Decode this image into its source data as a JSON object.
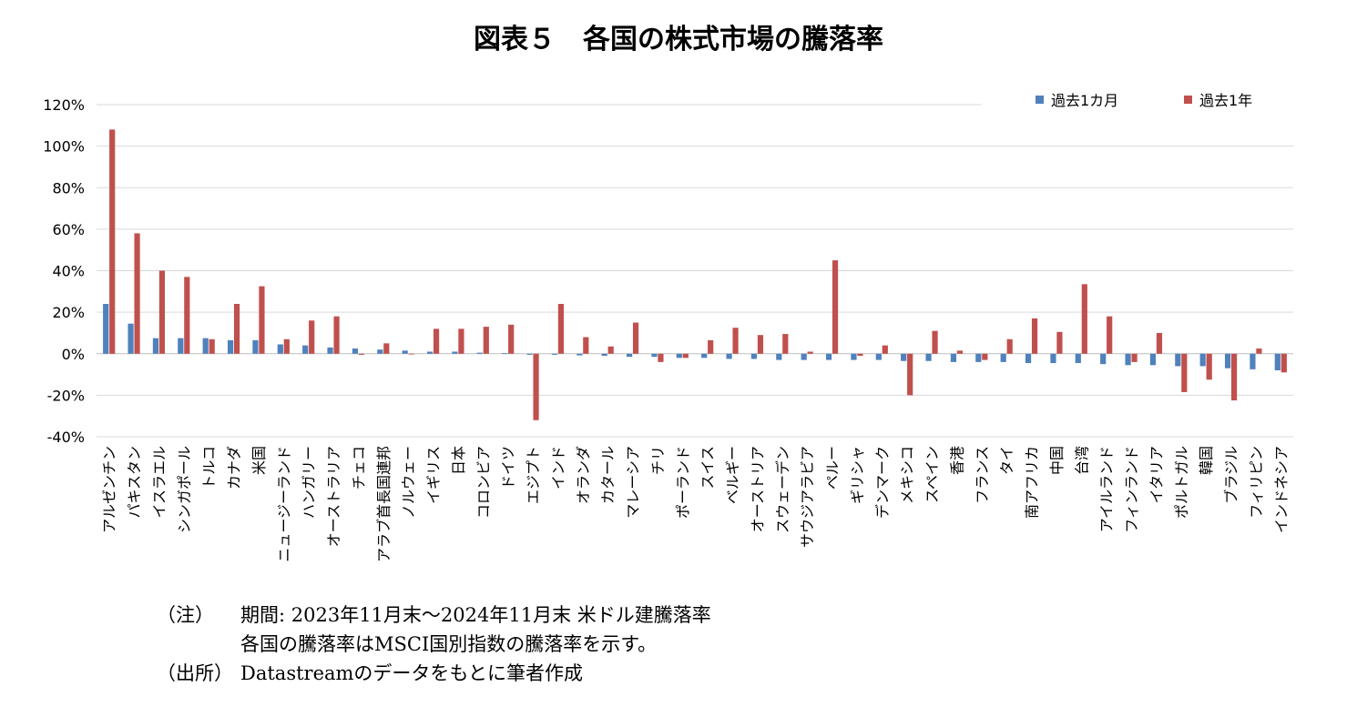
{
  "title": "図表５　各国の株式市場の騰落率",
  "chart_data": {
    "type": "bar",
    "y_unit": "%",
    "ylim": [
      -40,
      120
    ],
    "yticks": [
      -40,
      -20,
      0,
      20,
      40,
      60,
      80,
      100,
      120
    ],
    "ytick_labels": [
      "-40%",
      "-20%",
      "0%",
      "20%",
      "40%",
      "60%",
      "80%",
      "100%",
      "120%"
    ],
    "grid": true,
    "legend_position": "top-right",
    "categories": [
      "アルゼンチン",
      "パキスタン",
      "イスラエル",
      "シンガポール",
      "トルコ",
      "カナダ",
      "米国",
      "ニュージーランド",
      "ハンガリー",
      "オーストラリア",
      "チェコ",
      "アラブ首長国連邦",
      "ノルウェー",
      "イギリス",
      "日本",
      "コロンビア",
      "ドイツ",
      "エジプト",
      "インド",
      "オランダ",
      "カタール",
      "マレーシア",
      "チリ",
      "ポーランド",
      "スイス",
      "ベルギー",
      "オーストリア",
      "スウェーデン",
      "サウジアラビア",
      "ペルー",
      "ギリシャ",
      "デンマーク",
      "メキシコ",
      "スペイン",
      "香港",
      "フランス",
      "タイ",
      "南アフリカ",
      "中国",
      "台湾",
      "アイルランド",
      "フィンランド",
      "イタリア",
      "ポルトガル",
      "韓国",
      "ブラジル",
      "フィリピン",
      "インドネシア"
    ],
    "series": [
      {
        "name": "過去1カ月",
        "color": "#4f81bd",
        "values": [
          24,
          14.5,
          7.5,
          7.5,
          7.5,
          6.5,
          6.5,
          4.5,
          4,
          3,
          2.5,
          2,
          1.5,
          1,
          1,
          0.5,
          0.3,
          -0.5,
          -0.5,
          -0.8,
          -1,
          -1.5,
          -1.5,
          -2,
          -2,
          -2.5,
          -2.5,
          -3,
          -3,
          -3,
          -3,
          -3,
          -3.5,
          -3.5,
          -4,
          -4,
          -4,
          -4.5,
          -4.5,
          -4.5,
          -5,
          -5.5,
          -5.5,
          -6,
          -6,
          -7,
          -7.5,
          -8
        ]
      },
      {
        "name": "過去1年",
        "color": "#c0504d",
        "values": [
          108,
          58,
          40,
          37,
          7,
          24,
          32.5,
          7,
          16,
          18,
          -0.5,
          5,
          0,
          12,
          12,
          13,
          14,
          -32,
          24,
          8,
          3.5,
          15,
          -4,
          -2,
          6.5,
          12.5,
          9,
          9.5,
          1,
          45,
          -1,
          4,
          -20,
          11,
          1.5,
          -3,
          7,
          17,
          10.5,
          33.5,
          18,
          -4,
          10,
          -18.5,
          -12.5,
          -22.5,
          2.5,
          -9
        ]
      }
    ]
  },
  "notes": {
    "note_tag": "（注）",
    "note_line1": "期間: 2023年11月末～2024年11月末 米ドル建騰落率",
    "note_line2": "各国の騰落率はMSCI国別指数の騰落率を示す。",
    "source_tag": "（出所）",
    "source_line": "Datastreamのデータをもとに筆者作成"
  }
}
